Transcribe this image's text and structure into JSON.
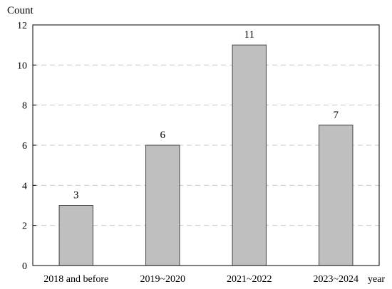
{
  "chart_data": {
    "type": "bar",
    "categories": [
      "2018 and before",
      "2019~2020",
      "2021~2022",
      "2023~2024"
    ],
    "values": [
      3,
      6,
      11,
      7
    ],
    "data_labels": [
      "3",
      "6",
      "11",
      "7"
    ],
    "title": "",
    "xlabel": "year",
    "ylabel": "Count",
    "ylim": [
      0,
      12
    ],
    "yticks": [
      0,
      2,
      4,
      6,
      8,
      10,
      12
    ],
    "ytick_labels": [
      "0",
      "2",
      "4",
      "6",
      "8",
      "10",
      "12"
    ],
    "grid": "horizontal dashed",
    "bar_color": "#bfbfbf",
    "bar_edge_color": "#404040",
    "grid_color": "#c8c8c8"
  }
}
